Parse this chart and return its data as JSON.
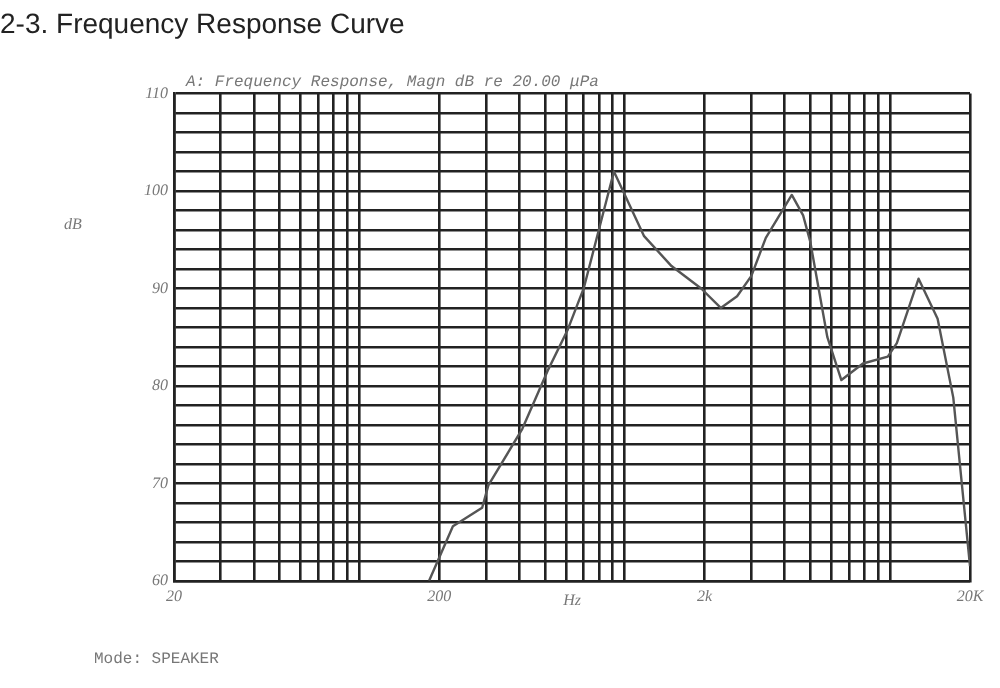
{
  "chart_data": {
    "type": "line",
    "title": "2-3. Frequency Response Curve",
    "subtitle": "A: Frequency Response, Magn dB re 20.00 μPa",
    "xlabel": "Hz",
    "ylabel": "dB",
    "annotations": [
      "Mode: SPEAKER"
    ],
    "x": [
      183,
      225,
      290,
      306,
      411,
      515,
      610,
      666,
      700,
      910,
      1180,
      1500,
      1940,
      2300,
      2650,
      3000,
      3400,
      4260,
      4700,
      5000,
      5800,
      6550,
      7900,
      9800,
      10600,
      12800,
      15100,
      17300,
      20000
    ],
    "series": [
      {
        "color": "#555555",
        "values": [
          60,
          65.6,
          67.5,
          69.8,
          75.6,
          81.7,
          85.8,
          88.5,
          90,
          102,
          95.4,
          92.3,
          90,
          88,
          89.2,
          91.3,
          95.2,
          99.6,
          97.5,
          94.8,
          85,
          80.6,
          82.3,
          83,
          84.4,
          91,
          86.9,
          78.8,
          61.5
        ]
      }
    ],
    "log": "x",
    "xlim": [
      20,
      20000
    ],
    "xticks": [
      20,
      {
        "value": 30,
        "label": null
      },
      {
        "value": 40,
        "label": null
      },
      {
        "value": 50,
        "label": null
      },
      {
        "value": 60,
        "label": null
      },
      {
        "value": 70,
        "label": null
      },
      {
        "value": 80,
        "label": null
      },
      {
        "value": 90,
        "label": null
      },
      {
        "value": 100,
        "label": null
      },
      200,
      {
        "value": 300,
        "label": null
      },
      {
        "value": 400,
        "label": null
      },
      {
        "value": 500,
        "label": null
      },
      {
        "value": 600,
        "label": null
      },
      {
        "value": 700,
        "label": null
      },
      {
        "value": 800,
        "label": null
      },
      {
        "value": 900,
        "label": null
      },
      {
        "value": 1000,
        "label": null
      },
      {
        "value": 2000,
        "label": "2k"
      },
      {
        "value": 3000,
        "label": null
      },
      {
        "value": 4000,
        "label": null
      },
      {
        "value": 5000,
        "label": null
      },
      {
        "value": 6000,
        "label": null
      },
      {
        "value": 7000,
        "label": null
      },
      {
        "value": 8000,
        "label": null
      },
      {
        "value": 9000,
        "label": null
      },
      {
        "value": 10000,
        "label": null
      },
      {
        "value": 20000,
        "label": "20K"
      }
    ],
    "ylim": [
      60,
      110
    ],
    "yticks": [
      60,
      {
        "value": 62,
        "label": null
      },
      {
        "value": 64,
        "label": null
      },
      {
        "value": 66,
        "label": null
      },
      {
        "value": 68,
        "label": null
      },
      70,
      {
        "value": 72,
        "label": null
      },
      {
        "value": 74,
        "label": null
      },
      {
        "value": 76,
        "label": null
      },
      {
        "value": 78,
        "label": null
      },
      80,
      {
        "value": 82,
        "label": null
      },
      {
        "value": 84,
        "label": null
      },
      {
        "value": 86,
        "label": null
      },
      {
        "value": 88,
        "label": null
      },
      90,
      {
        "value": 92,
        "label": null
      },
      {
        "value": 94,
        "label": null
      },
      {
        "value": 96,
        "label": null
      },
      {
        "value": 98,
        "label": null
      },
      100,
      {
        "value": 102,
        "label": null
      },
      {
        "value": 104,
        "label": null
      },
      {
        "value": 106,
        "label": null
      },
      {
        "value": 108,
        "label": null
      },
      110
    ],
    "grid": true,
    "legend": false,
    "marker": "none",
    "line_style": "solid"
  }
}
